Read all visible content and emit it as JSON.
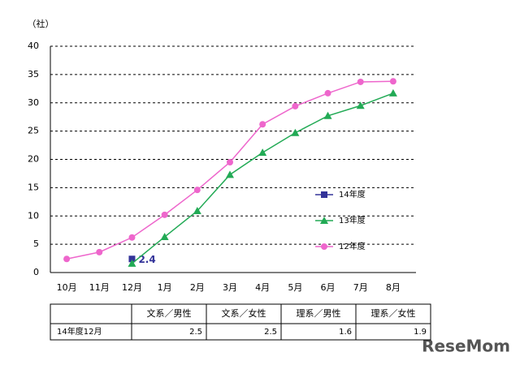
{
  "chart_data": {
    "type": "line",
    "y_unit": "（社）",
    "categories": [
      "10月",
      "11月",
      "12月",
      "1月",
      "2月",
      "3月",
      "4月",
      "5月",
      "6月",
      "7月",
      "8月"
    ],
    "series": [
      {
        "name": "14年度",
        "color": "#333399",
        "marker": "square",
        "values": [
          null,
          null,
          2.4,
          null,
          null,
          null,
          null,
          null,
          null,
          null,
          null
        ],
        "value_labels": [
          null,
          null,
          "2.4",
          null,
          null,
          null,
          null,
          null,
          null,
          null,
          null
        ]
      },
      {
        "name": "13年度",
        "color": "#22aa55",
        "marker": "triangle",
        "values": [
          null,
          null,
          1.6,
          6.3,
          10.9,
          17.3,
          21.2,
          24.7,
          27.7,
          29.5,
          31.7
        ]
      },
      {
        "name": "12年度",
        "color": "#ee66cc",
        "marker": "circle",
        "values": [
          2.4,
          3.6,
          6.2,
          10.2,
          14.6,
          19.5,
          26.2,
          29.4,
          31.7,
          33.7,
          33.8
        ]
      }
    ],
    "ylim": [
      0,
      40
    ],
    "yticks": [
      0,
      5,
      10,
      15,
      20,
      25,
      30,
      35,
      40
    ],
    "grid": true,
    "legend": "right"
  },
  "table": {
    "columns": [
      "文系／男性",
      "文系／女性",
      "理系／男性",
      "理系／女性"
    ],
    "rows": [
      {
        "label": "14年度12月",
        "values": [
          2.5,
          2.5,
          1.6,
          1.9
        ]
      }
    ]
  },
  "watermark": "ReseMom"
}
